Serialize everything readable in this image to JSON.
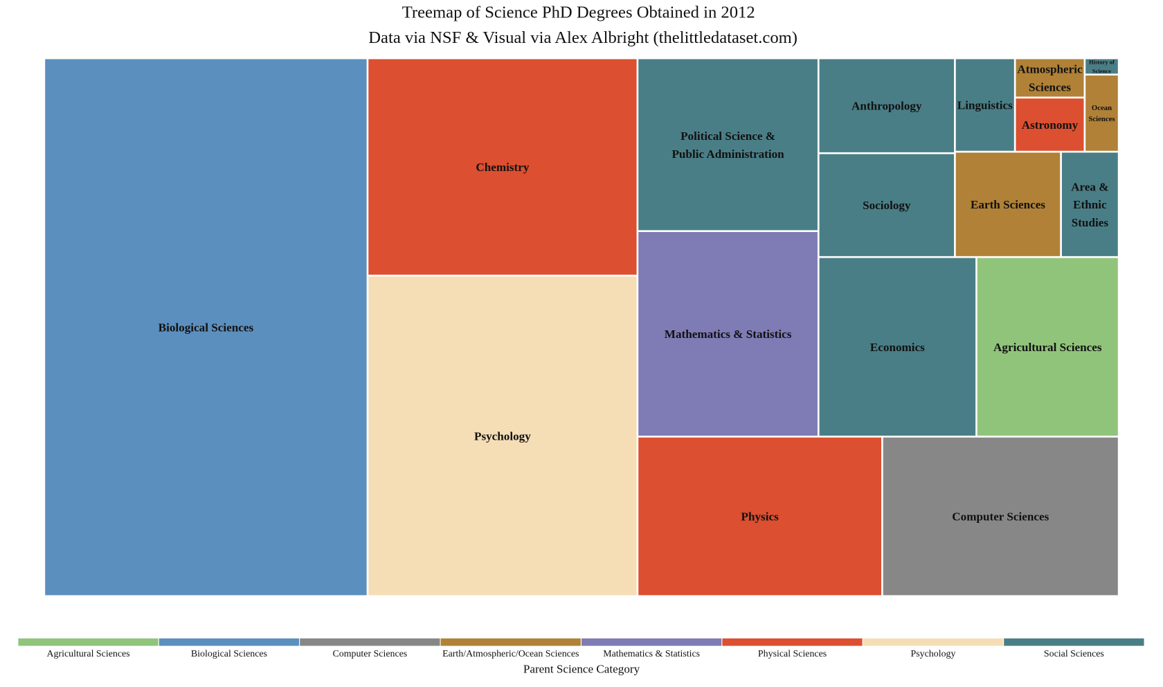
{
  "chart_data": {
    "type": "treemap",
    "title": "Treemap of Science PhD Degrees Obtained in 2012",
    "subtitle": "Data via NSF & Visual via Alex Albright (thelittledataset.com)",
    "legend_title": "Parent Science Category",
    "legend_placement": "bottom",
    "value_note": "values estimated from relative tile areas",
    "categories": [
      {
        "name": "Agricultural Sciences",
        "color": "#90c47b"
      },
      {
        "name": "Biological Sciences",
        "color": "#5b8fbe"
      },
      {
        "name": "Computer Sciences",
        "color": "#878787"
      },
      {
        "name": "Earth/Atmospheric/Ocean Sciences",
        "color": "#b08137"
      },
      {
        "name": "Mathematics & Statistics",
        "color": "#7e7bb5"
      },
      {
        "name": "Physical Sciences",
        "color": "#dc4f30"
      },
      {
        "name": "Psychology",
        "color": "#f5deb6"
      },
      {
        "name": "Social Sciences",
        "color": "#4a7e86"
      }
    ],
    "items": [
      {
        "id": "bio",
        "label": "Biological Sciences",
        "parent": "Biological Sciences",
        "value": 7874
      },
      {
        "id": "chem",
        "label": "Chemistry",
        "parent": "Physical Sciences",
        "value": 2650
      },
      {
        "id": "psych",
        "label": "Psychology",
        "parent": "Psychology",
        "value": 3911
      },
      {
        "id": "polsci",
        "label": "Political Science & Public Administration",
        "parent": "Social Sciences",
        "value": 1409
      },
      {
        "id": "math",
        "label": "Mathematics & Statistics",
        "parent": "Mathematics & Statistics",
        "value": 1677
      },
      {
        "id": "physics",
        "label": "Physics",
        "parent": "Physical Sciences",
        "value": 1760
      },
      {
        "id": "cs",
        "label": "Computer Sciences",
        "parent": "Computer Sciences",
        "value": 1701
      },
      {
        "id": "anthro",
        "label": "Anthropology",
        "parent": "Social Sciences",
        "value": 581
      },
      {
        "id": "soc",
        "label": "Sociology",
        "parent": "Social Sciences",
        "value": 636
      },
      {
        "id": "econ",
        "label": "Economics",
        "parent": "Social Sciences",
        "value": 1277
      },
      {
        "id": "ag",
        "label": "Agricultural Sciences",
        "parent": "Agricultural Sciences",
        "value": 1151
      },
      {
        "id": "ling",
        "label": "Linguistics",
        "parent": "Social Sciences",
        "value": 250
      },
      {
        "id": "atmos",
        "label": "Atmospheric Sciences",
        "parent": "Earth/Atmospheric/Ocean Sciences",
        "value": 121
      },
      {
        "id": "astro",
        "label": "Astronomy",
        "parent": "Physical Sciences",
        "value": 167
      },
      {
        "id": "hist",
        "label": "History of Science",
        "parent": "Social Sciences",
        "value": 24
      },
      {
        "id": "ocean",
        "label": "Ocean Sciences",
        "parent": "Earth/Atmospheric/Ocean Sciences",
        "value": 116
      },
      {
        "id": "earth",
        "label": "Earth Sciences",
        "parent": "Earth/Atmospheric/Ocean Sciences",
        "value": 501
      },
      {
        "id": "area",
        "label": "Area & Ethnic Studies",
        "parent": "Social Sciences",
        "value": 271
      }
    ]
  }
}
